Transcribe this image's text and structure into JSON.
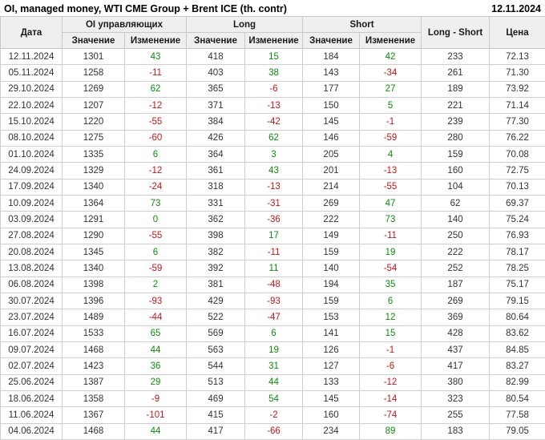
{
  "title": "OI, managed money, WTI CME Group + Brent ICE (th. contr)",
  "report_date": "12.11.2024",
  "colors": {
    "positive_change": "#0a8f0a",
    "negative_change": "#cc1414",
    "header_background": "#efefef",
    "grid_border": "#cfcfcf",
    "body_text": "#333333"
  },
  "table": {
    "headers": {
      "date": "Дата",
      "oi_group": "OI управляющих",
      "long_group": "Long",
      "short_group": "Short",
      "long_short": "Long - Short",
      "price": "Цена",
      "value": "Значение",
      "change": "Изменение"
    }
  },
  "chart_data": {
    "type": "table",
    "title": "OI, managed money, WTI CME Group + Brent ICE (th. contr)",
    "columns": [
      "Дата",
      "OI управляющих Значение",
      "OI управляющих Изменение",
      "Long Значение",
      "Long Изменение",
      "Short Значение",
      "Short Изменение",
      "Long - Short",
      "Цена"
    ],
    "rows": [
      [
        "12.11.2024",
        1301,
        43,
        418,
        15,
        184,
        42,
        233,
        "72.13"
      ],
      [
        "05.11.2024",
        1258,
        -11,
        403,
        38,
        143,
        -34,
        261,
        "71.30"
      ],
      [
        "29.10.2024",
        1269,
        62,
        365,
        -6,
        177,
        27,
        189,
        "73.92"
      ],
      [
        "22.10.2024",
        1207,
        -12,
        371,
        -13,
        150,
        5,
        221,
        "71.14"
      ],
      [
        "15.10.2024",
        1220,
        -55,
        384,
        -42,
        145,
        -1,
        239,
        "77.30"
      ],
      [
        "08.10.2024",
        1275,
        -60,
        426,
        62,
        146,
        -59,
        280,
        "76.22"
      ],
      [
        "01.10.2024",
        1335,
        6,
        364,
        3,
        205,
        4,
        159,
        "70.08"
      ],
      [
        "24.09.2024",
        1329,
        -12,
        361,
        43,
        201,
        -13,
        160,
        "72.75"
      ],
      [
        "17.09.2024",
        1340,
        -24,
        318,
        -13,
        214,
        -55,
        104,
        "70.13"
      ],
      [
        "10.09.2024",
        1364,
        73,
        331,
        -31,
        269,
        47,
        62,
        "69.37"
      ],
      [
        "03.09.2024",
        1291,
        0,
        362,
        -36,
        222,
        73,
        140,
        "75.24"
      ],
      [
        "27.08.2024",
        1290,
        -55,
        398,
        17,
        149,
        -11,
        250,
        "76.93"
      ],
      [
        "20.08.2024",
        1345,
        6,
        382,
        -11,
        159,
        19,
        222,
        "78.17"
      ],
      [
        "13.08.2024",
        1340,
        -59,
        392,
        11,
        140,
        -54,
        252,
        "78.25"
      ],
      [
        "06.08.2024",
        1398,
        2,
        381,
        -48,
        194,
        35,
        187,
        "75.17"
      ],
      [
        "30.07.2024",
        1396,
        -93,
        429,
        -93,
        159,
        6,
        269,
        "79.15"
      ],
      [
        "23.07.2024",
        1489,
        -44,
        522,
        -47,
        153,
        12,
        369,
        "80.64"
      ],
      [
        "16.07.2024",
        1533,
        65,
        569,
        6,
        141,
        15,
        428,
        "83.62"
      ],
      [
        "09.07.2024",
        1468,
        44,
        563,
        19,
        126,
        -1,
        437,
        "84.85"
      ],
      [
        "02.07.2024",
        1423,
        36,
        544,
        31,
        127,
        -6,
        417,
        "83.27"
      ],
      [
        "25.06.2024",
        1387,
        29,
        513,
        44,
        133,
        -12,
        380,
        "82.99"
      ],
      [
        "18.06.2024",
        1358,
        -9,
        469,
        54,
        145,
        -14,
        323,
        "80.54"
      ],
      [
        "11.06.2024",
        1367,
        -101,
        415,
        -2,
        160,
        -74,
        255,
        "77.58"
      ],
      [
        "04.06.2024",
        1468,
        44,
        417,
        -66,
        234,
        89,
        183,
        "79.05"
      ]
    ]
  }
}
